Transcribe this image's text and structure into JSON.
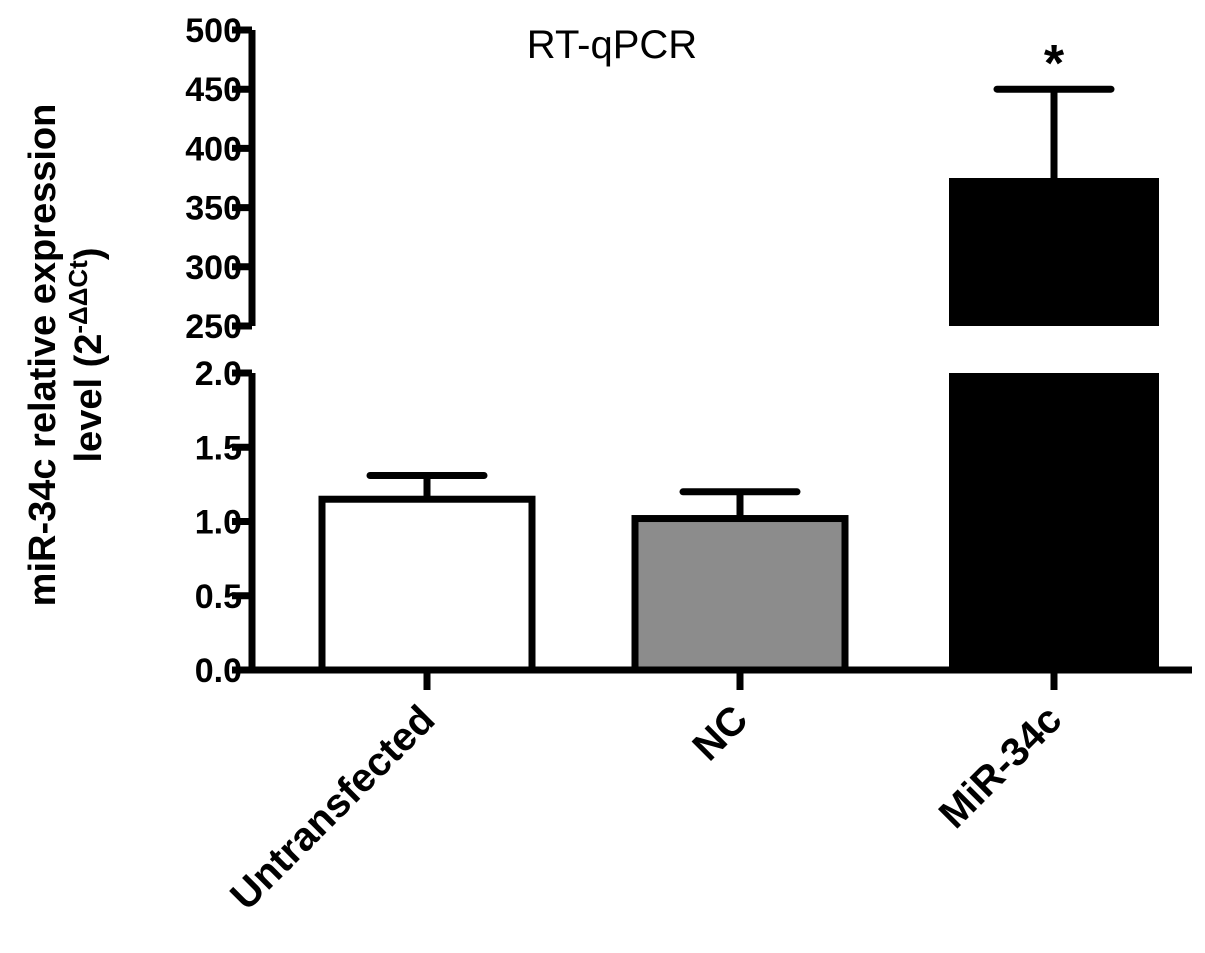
{
  "chart_data": {
    "type": "bar",
    "title": "RT-qPCR",
    "ylabel_line1": "miR-34c relative expression",
    "ylabel_line2": "level (2",
    "ylabel_sup": "-ΔΔCt",
    "ylabel_close": ")",
    "categories": [
      "Untransfected",
      "NC",
      "MiR-34c"
    ],
    "values": [
      1.15,
      1.02,
      375
    ],
    "errors": [
      0.16,
      0.18,
      75
    ],
    "colors": [
      "#ffffff",
      "#8c8c8c",
      "#000000"
    ],
    "significance": [
      "",
      "",
      "*"
    ],
    "y_axis_break": {
      "lower_range": [
        0,
        2.0
      ],
      "upper_range": [
        250,
        500
      ],
      "lower_ticks": [
        "0.0",
        "0.5",
        "1.0",
        "1.5",
        "2.0"
      ],
      "upper_ticks": [
        "250",
        "300",
        "350",
        "400",
        "450",
        "500"
      ]
    },
    "grid": false,
    "legend": "none"
  }
}
